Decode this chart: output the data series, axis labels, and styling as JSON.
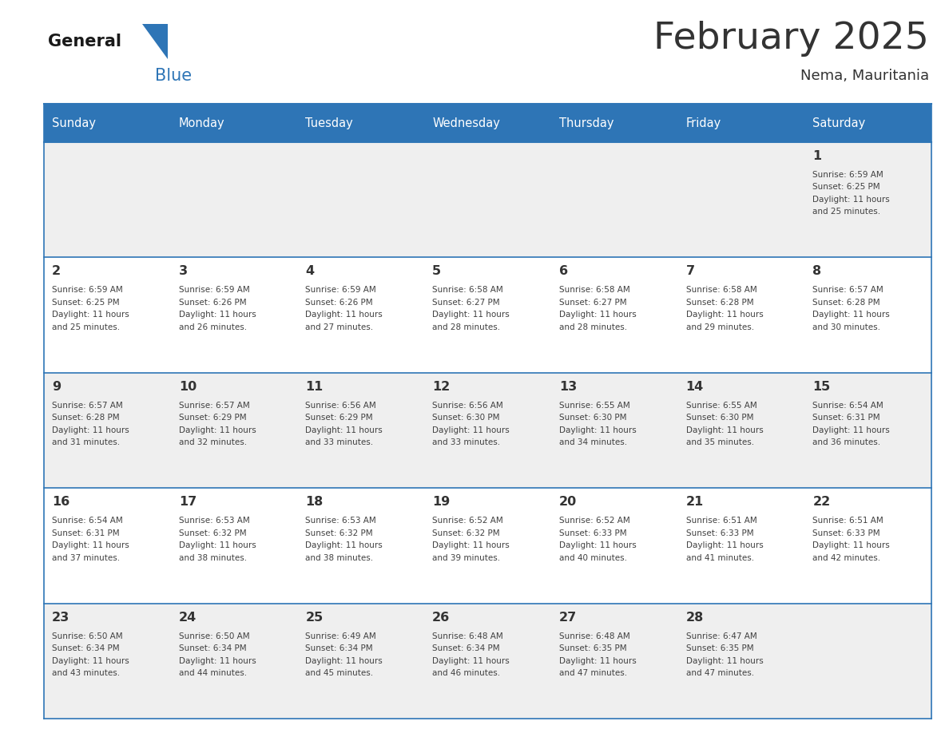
{
  "title": "February 2025",
  "subtitle": "Nema, Mauritania",
  "header_bg": "#2E75B6",
  "header_text_color": "#FFFFFF",
  "days_of_week": [
    "Sunday",
    "Monday",
    "Tuesday",
    "Wednesday",
    "Thursday",
    "Friday",
    "Saturday"
  ],
  "cell_bg_light": "#EFEFEF",
  "cell_bg_white": "#FFFFFF",
  "divider_color": "#2E75B6",
  "text_color": "#404040",
  "day_number_color": "#333333",
  "logo_general_color": "#1a1a1a",
  "logo_blue_color": "#2E75B6",
  "calendar_data": [
    [
      null,
      null,
      null,
      null,
      null,
      null,
      {
        "day": 1,
        "sunrise": "6:59 AM",
        "sunset": "6:25 PM",
        "daylight": "11 hours and 25 minutes."
      }
    ],
    [
      {
        "day": 2,
        "sunrise": "6:59 AM",
        "sunset": "6:25 PM",
        "daylight": "11 hours and 25 minutes."
      },
      {
        "day": 3,
        "sunrise": "6:59 AM",
        "sunset": "6:26 PM",
        "daylight": "11 hours and 26 minutes."
      },
      {
        "day": 4,
        "sunrise": "6:59 AM",
        "sunset": "6:26 PM",
        "daylight": "11 hours and 27 minutes."
      },
      {
        "day": 5,
        "sunrise": "6:58 AM",
        "sunset": "6:27 PM",
        "daylight": "11 hours and 28 minutes."
      },
      {
        "day": 6,
        "sunrise": "6:58 AM",
        "sunset": "6:27 PM",
        "daylight": "11 hours and 28 minutes."
      },
      {
        "day": 7,
        "sunrise": "6:58 AM",
        "sunset": "6:28 PM",
        "daylight": "11 hours and 29 minutes."
      },
      {
        "day": 8,
        "sunrise": "6:57 AM",
        "sunset": "6:28 PM",
        "daylight": "11 hours and 30 minutes."
      }
    ],
    [
      {
        "day": 9,
        "sunrise": "6:57 AM",
        "sunset": "6:28 PM",
        "daylight": "11 hours and 31 minutes."
      },
      {
        "day": 10,
        "sunrise": "6:57 AM",
        "sunset": "6:29 PM",
        "daylight": "11 hours and 32 minutes."
      },
      {
        "day": 11,
        "sunrise": "6:56 AM",
        "sunset": "6:29 PM",
        "daylight": "11 hours and 33 minutes."
      },
      {
        "day": 12,
        "sunrise": "6:56 AM",
        "sunset": "6:30 PM",
        "daylight": "11 hours and 33 minutes."
      },
      {
        "day": 13,
        "sunrise": "6:55 AM",
        "sunset": "6:30 PM",
        "daylight": "11 hours and 34 minutes."
      },
      {
        "day": 14,
        "sunrise": "6:55 AM",
        "sunset": "6:30 PM",
        "daylight": "11 hours and 35 minutes."
      },
      {
        "day": 15,
        "sunrise": "6:54 AM",
        "sunset": "6:31 PM",
        "daylight": "11 hours and 36 minutes."
      }
    ],
    [
      {
        "day": 16,
        "sunrise": "6:54 AM",
        "sunset": "6:31 PM",
        "daylight": "11 hours and 37 minutes."
      },
      {
        "day": 17,
        "sunrise": "6:53 AM",
        "sunset": "6:32 PM",
        "daylight": "11 hours and 38 minutes."
      },
      {
        "day": 18,
        "sunrise": "6:53 AM",
        "sunset": "6:32 PM",
        "daylight": "11 hours and 38 minutes."
      },
      {
        "day": 19,
        "sunrise": "6:52 AM",
        "sunset": "6:32 PM",
        "daylight": "11 hours and 39 minutes."
      },
      {
        "day": 20,
        "sunrise": "6:52 AM",
        "sunset": "6:33 PM",
        "daylight": "11 hours and 40 minutes."
      },
      {
        "day": 21,
        "sunrise": "6:51 AM",
        "sunset": "6:33 PM",
        "daylight": "11 hours and 41 minutes."
      },
      {
        "day": 22,
        "sunrise": "6:51 AM",
        "sunset": "6:33 PM",
        "daylight": "11 hours and 42 minutes."
      }
    ],
    [
      {
        "day": 23,
        "sunrise": "6:50 AM",
        "sunset": "6:34 PM",
        "daylight": "11 hours and 43 minutes."
      },
      {
        "day": 24,
        "sunrise": "6:50 AM",
        "sunset": "6:34 PM",
        "daylight": "11 hours and 44 minutes."
      },
      {
        "day": 25,
        "sunrise": "6:49 AM",
        "sunset": "6:34 PM",
        "daylight": "11 hours and 45 minutes."
      },
      {
        "day": 26,
        "sunrise": "6:48 AM",
        "sunset": "6:34 PM",
        "daylight": "11 hours and 46 minutes."
      },
      {
        "day": 27,
        "sunrise": "6:48 AM",
        "sunset": "6:35 PM",
        "daylight": "11 hours and 47 minutes."
      },
      {
        "day": 28,
        "sunrise": "6:47 AM",
        "sunset": "6:35 PM",
        "daylight": "11 hours and 47 minutes."
      },
      null
    ]
  ]
}
